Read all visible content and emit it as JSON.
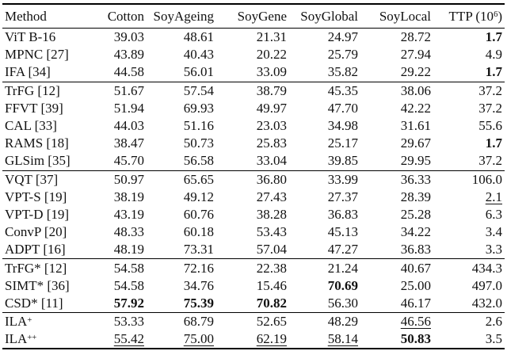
{
  "table": {
    "columns": [
      {
        "label": "Method"
      },
      {
        "label": "Cotton"
      },
      {
        "label": "SoyAgeing"
      },
      {
        "label": "SoyGene"
      },
      {
        "label": "SoyGlobal"
      },
      {
        "label": "SoyLocal"
      },
      {
        "label": "TTP (10",
        "sup": "6",
        "post": ")"
      }
    ],
    "sections": [
      {
        "rows": [
          {
            "method": "ViT B-16",
            "cells": [
              {
                "v": "39.03"
              },
              {
                "v": "48.61"
              },
              {
                "v": "21.31"
              },
              {
                "v": "24.97"
              },
              {
                "v": "28.72"
              },
              {
                "v": "1.7",
                "s": "b"
              }
            ]
          },
          {
            "method": "MPNC [27]",
            "cells": [
              {
                "v": "43.89"
              },
              {
                "v": "40.43"
              },
              {
                "v": "20.22"
              },
              {
                "v": "25.79"
              },
              {
                "v": "27.94"
              },
              {
                "v": "4.9"
              }
            ]
          },
          {
            "method": "IFA [34]",
            "cells": [
              {
                "v": "44.58"
              },
              {
                "v": "56.01"
              },
              {
                "v": "33.09"
              },
              {
                "v": "35.82"
              },
              {
                "v": "29.22"
              },
              {
                "v": "1.7",
                "s": "b"
              }
            ]
          }
        ]
      },
      {
        "rows": [
          {
            "method": "TrFG [12]",
            "cells": [
              {
                "v": "51.67"
              },
              {
                "v": "57.54"
              },
              {
                "v": "38.79"
              },
              {
                "v": "45.35"
              },
              {
                "v": "38.06"
              },
              {
                "v": "37.2"
              }
            ]
          },
          {
            "method": "FFVT [39]",
            "cells": [
              {
                "v": "51.94"
              },
              {
                "v": "69.93"
              },
              {
                "v": "49.97"
              },
              {
                "v": "47.70"
              },
              {
                "v": "42.22"
              },
              {
                "v": "37.2"
              }
            ]
          },
          {
            "method": "CAL [33]",
            "cells": [
              {
                "v": "44.03"
              },
              {
                "v": "51.16"
              },
              {
                "v": "23.03"
              },
              {
                "v": "34.98"
              },
              {
                "v": "31.61"
              },
              {
                "v": "55.6"
              }
            ]
          },
          {
            "method": "RAMS [18]",
            "cells": [
              {
                "v": "38.47"
              },
              {
                "v": "50.73"
              },
              {
                "v": "25.83"
              },
              {
                "v": "25.17"
              },
              {
                "v": "29.67"
              },
              {
                "v": "1.7",
                "s": "b"
              }
            ]
          },
          {
            "method": "GLSim [35]",
            "cells": [
              {
                "v": "45.70"
              },
              {
                "v": "56.58"
              },
              {
                "v": "33.04"
              },
              {
                "v": "39.85"
              },
              {
                "v": "29.95"
              },
              {
                "v": "37.2"
              }
            ]
          }
        ]
      },
      {
        "rows": [
          {
            "method": "VQT [37]",
            "cells": [
              {
                "v": "50.97"
              },
              {
                "v": "65.65"
              },
              {
                "v": "36.80"
              },
              {
                "v": "33.99"
              },
              {
                "v": "36.33"
              },
              {
                "v": "106.0"
              }
            ]
          },
          {
            "method": "VPT-S [19]",
            "cells": [
              {
                "v": "38.19"
              },
              {
                "v": "49.12"
              },
              {
                "v": "27.43"
              },
              {
                "v": "27.37"
              },
              {
                "v": "28.39"
              },
              {
                "v": "2.1",
                "s": "u"
              }
            ]
          },
          {
            "method": "VPT-D [19]",
            "cells": [
              {
                "v": "43.19"
              },
              {
                "v": "60.76"
              },
              {
                "v": "38.28"
              },
              {
                "v": "36.83"
              },
              {
                "v": "25.28"
              },
              {
                "v": "6.3"
              }
            ]
          },
          {
            "method": "ConvP [20]",
            "cells": [
              {
                "v": "48.33"
              },
              {
                "v": "60.18"
              },
              {
                "v": "53.43"
              },
              {
                "v": "45.13"
              },
              {
                "v": "34.22"
              },
              {
                "v": "3.4"
              }
            ]
          },
          {
            "method": "ADPT [16]",
            "cells": [
              {
                "v": "48.19"
              },
              {
                "v": "73.31"
              },
              {
                "v": "57.04"
              },
              {
                "v": "47.27"
              },
              {
                "v": "36.83"
              },
              {
                "v": "3.3"
              }
            ]
          }
        ]
      },
      {
        "rows": [
          {
            "method": "TrFG* [12]",
            "cells": [
              {
                "v": "54.58"
              },
              {
                "v": "72.16"
              },
              {
                "v": "22.38"
              },
              {
                "v": "21.24"
              },
              {
                "v": "40.67"
              },
              {
                "v": "434.3"
              }
            ]
          },
          {
            "method": "SIMT* [36]",
            "cells": [
              {
                "v": "54.58"
              },
              {
                "v": "34.76"
              },
              {
                "v": "15.46"
              },
              {
                "v": "70.69",
                "s": "b"
              },
              {
                "v": "25.00"
              },
              {
                "v": "497.0"
              }
            ]
          },
          {
            "method": "CSD* [11]",
            "cells": [
              {
                "v": "57.92",
                "s": "b"
              },
              {
                "v": "75.39",
                "s": "b"
              },
              {
                "v": "70.82",
                "s": "b"
              },
              {
                "v": "56.30"
              },
              {
                "v": "46.17"
              },
              {
                "v": "432.0"
              }
            ]
          }
        ]
      },
      {
        "rows": [
          {
            "method": "ILA",
            "method_sup": "+",
            "cells": [
              {
                "v": "53.33"
              },
              {
                "v": "68.79"
              },
              {
                "v": "52.65"
              },
              {
                "v": "48.29"
              },
              {
                "v": "46.56",
                "s": "u"
              },
              {
                "v": "2.6"
              }
            ]
          },
          {
            "method": "ILA",
            "method_sup": "++",
            "cells": [
              {
                "v": "55.42",
                "s": "u"
              },
              {
                "v": "75.00",
                "s": "u"
              },
              {
                "v": "62.19",
                "s": "u"
              },
              {
                "v": "58.14",
                "s": "u"
              },
              {
                "v": "50.83",
                "s": "b"
              },
              {
                "v": "3.5"
              }
            ]
          }
        ]
      }
    ]
  }
}
